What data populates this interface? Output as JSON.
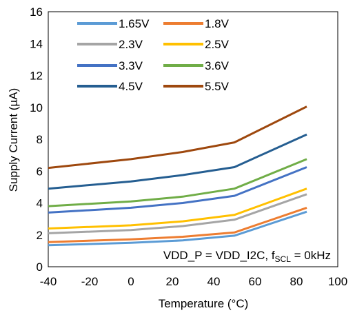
{
  "chart_data": {
    "type": "line",
    "xlabel": "Temperature (°C)",
    "ylabel": "Supply Current (µA)",
    "xlim": [
      -40,
      100
    ],
    "ylim": [
      0,
      16
    ],
    "xticks": [
      -40,
      -20,
      0,
      20,
      40,
      60,
      80,
      100
    ],
    "yticks": [
      0,
      2,
      4,
      6,
      8,
      10,
      12,
      14,
      16
    ],
    "grid": false,
    "legend_position": "top-left",
    "annotation": {
      "main": "VDD_P = VDD_I2C, f",
      "sub": "SCL",
      "tail": " = 0kHz"
    },
    "series": [
      {
        "name": "1.65V",
        "color": "#5B9BD5",
        "x": [
          -40,
          0,
          25,
          50,
          85
        ],
        "y": [
          1.35,
          1.5,
          1.65,
          1.95,
          3.45
        ]
      },
      {
        "name": "1.8V",
        "color": "#ED7D31",
        "x": [
          -40,
          0,
          25,
          50,
          85
        ],
        "y": [
          1.55,
          1.72,
          1.88,
          2.15,
          3.7
        ]
      },
      {
        "name": "2.3V",
        "color": "#A5A5A5",
        "x": [
          -40,
          0,
          25,
          50,
          85
        ],
        "y": [
          2.1,
          2.3,
          2.55,
          2.95,
          4.55
        ]
      },
      {
        "name": "2.5V",
        "color": "#FFC000",
        "x": [
          -40,
          0,
          25,
          50,
          85
        ],
        "y": [
          2.4,
          2.6,
          2.85,
          3.25,
          4.9
        ]
      },
      {
        "name": "3.3V",
        "color": "#4472C4",
        "x": [
          -40,
          0,
          25,
          50,
          85
        ],
        "y": [
          3.4,
          3.7,
          4.0,
          4.45,
          6.25
        ]
      },
      {
        "name": "3.6V",
        "color": "#70AD47",
        "x": [
          -40,
          0,
          25,
          50,
          85
        ],
        "y": [
          3.8,
          4.1,
          4.4,
          4.9,
          6.75
        ]
      },
      {
        "name": "4.5V",
        "color": "#255E91",
        "x": [
          -40,
          0,
          25,
          50,
          85
        ],
        "y": [
          4.9,
          5.35,
          5.75,
          6.25,
          8.3
        ]
      },
      {
        "name": "5.5V",
        "color": "#9E480E",
        "x": [
          -40,
          0,
          25,
          50,
          85
        ],
        "y": [
          6.2,
          6.75,
          7.2,
          7.8,
          10.05
        ]
      }
    ]
  }
}
